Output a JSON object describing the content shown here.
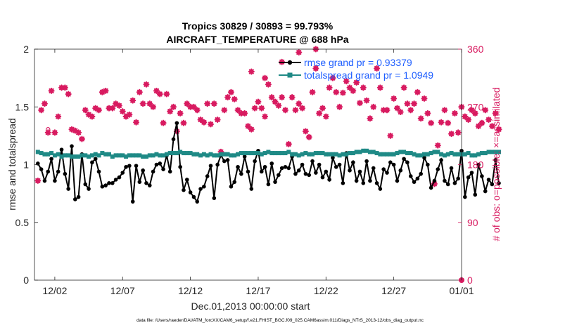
{
  "chart_data": {
    "type": "line",
    "title_line1": "Tropics 30829 / 30893 = 99.793%",
    "title_line2": "AIRCRAFT_TEMPERATURE @ 688 hPa",
    "xlabel": "Dec.01,2013 00:00:00 start",
    "ylabel_left": "rmse and totalspread",
    "ylabel_right": "# of obs: o=possible; ×=assimilated",
    "ylim_left": [
      0,
      2
    ],
    "ylim_right": [
      0,
      360
    ],
    "xlim_days": [
      -0.5,
      31
    ],
    "x_ticks": [
      {
        "day": 1,
        "label": "12/02"
      },
      {
        "day": 6,
        "label": "12/07"
      },
      {
        "day": 11,
        "label": "12/12"
      },
      {
        "day": 16,
        "label": "12/17"
      },
      {
        "day": 21,
        "label": "12/22"
      },
      {
        "day": 26,
        "label": "12/27"
      },
      {
        "day": 31,
        "label": "01/01"
      }
    ],
    "y_ticks_left": [
      {
        "value": 0,
        "label": "0"
      },
      {
        "value": 0.5,
        "label": "0.5"
      },
      {
        "value": 1,
        "label": "1"
      },
      {
        "value": 1.5,
        "label": "1.5"
      },
      {
        "value": 2,
        "label": "2"
      }
    ],
    "y_ticks_right": [
      {
        "value": 0,
        "label": "0"
      },
      {
        "value": 90,
        "label": "90"
      },
      {
        "value": 180,
        "label": "180"
      },
      {
        "value": 270,
        "label": "270"
      },
      {
        "value": 360,
        "label": "360"
      }
    ],
    "x_start_day": -0.25,
    "x_step_days": 0.25,
    "series": [
      {
        "name": "rmse grand pr = 0.93379",
        "axis": "left",
        "color": "#000000",
        "marker": "filled-circle",
        "values": [
          1.01,
          0.96,
          0.86,
          0.94,
          1.05,
          0.86,
          0.94,
          1.13,
          0.92,
          0.79,
          1.16,
          0.7,
          0.72,
          1.09,
          0.83,
          0.79,
          1.02,
          1.05,
          0.94,
          0.81,
          0.82,
          0.84,
          0.84,
          0.87,
          0.89,
          0.93,
          0.98,
          0.99,
          0.68,
          0.99,
          0.85,
          0.95,
          0.84,
          0.82,
          0.94,
          1.0,
          1.01,
          0.96,
          1.08,
          0.94,
          1.22,
          1.36,
          0.98,
          0.78,
          0.87,
          0.76,
          0.72,
          0.68,
          0.79,
          0.81,
          0.9,
          0.99,
          0.71,
          1.0,
          1.08,
          1.03,
          1.04,
          0.81,
          0.85,
          0.98,
          0.92,
          1.07,
          0.94,
          0.79,
          1.03,
          1.12,
          0.94,
          0.98,
          0.83,
          1.01,
          0.85,
          0.91,
          0.97,
          0.98,
          0.97,
          1.07,
          0.92,
          0.95,
          1.0,
          0.92,
          0.91,
          1.03,
          0.93,
          1.0,
          0.89,
          0.94,
          0.87,
          1.06,
          0.98,
          1.0,
          0.84,
          1.1,
          0.95,
          1.02,
          0.86,
          0.94,
          0.84,
          1.03,
          0.86,
          0.97,
          0.84,
          0.79,
          0.96,
          0.93,
          1.02,
          1.0,
          0.86,
          0.95,
          1.05,
          1.02,
          0.9,
          0.85,
          0.88,
          0.92,
          1.06,
          1.0,
          0.8,
          0.86,
          0.96,
          1.04,
          0.86,
          0.83,
          0.97,
          0.84,
          0.88,
          1.12,
          0.72,
          0.89,
          0.93,
          0.74,
          1.0,
          0.9,
          0.77,
          0.87,
          0.83,
          1.04,
          0.84
        ]
      },
      {
        "name": "totalspread grand pr = 1.0949",
        "axis": "left",
        "color": "#1f8a86",
        "marker": "filled-square",
        "values": [
          1.11,
          1.1,
          1.09,
          1.09,
          1.1,
          1.08,
          1.09,
          1.07,
          1.08,
          1.08,
          1.07,
          1.07,
          1.07,
          1.08,
          1.08,
          1.07,
          1.08,
          1.09,
          1.08,
          1.1,
          1.09,
          1.09,
          1.07,
          1.08,
          1.08,
          1.08,
          1.07,
          1.08,
          1.08,
          1.08,
          1.08,
          1.07,
          1.07,
          1.08,
          1.08,
          1.09,
          1.08,
          1.08,
          1.09,
          1.1,
          1.1,
          1.1,
          1.11,
          1.1,
          1.1,
          1.1,
          1.09,
          1.09,
          1.08,
          1.09,
          1.08,
          1.09,
          1.08,
          1.08,
          1.09,
          1.09,
          1.09,
          1.08,
          1.08,
          1.09,
          1.1,
          1.1,
          1.1,
          1.1,
          1.1,
          1.1,
          1.09,
          1.1,
          1.11,
          1.1,
          1.1,
          1.1,
          1.1,
          1.1,
          1.11,
          1.09,
          1.09,
          1.08,
          1.09,
          1.1,
          1.09,
          1.09,
          1.1,
          1.1,
          1.1,
          1.09,
          1.09,
          1.09,
          1.09,
          1.08,
          1.09,
          1.09,
          1.1,
          1.1,
          1.11,
          1.11,
          1.12,
          1.12,
          1.11,
          1.11,
          1.1,
          1.09,
          1.09,
          1.09,
          1.09,
          1.09,
          1.1,
          1.11,
          1.11,
          1.1,
          1.1,
          1.09,
          1.08,
          1.08,
          1.09,
          1.09,
          1.1,
          1.11,
          1.11,
          1.09,
          1.08,
          1.09,
          1.1,
          1.09,
          1.09,
          1.09,
          1.09,
          1.1,
          1.08,
          1.08,
          1.09,
          1.1,
          1.1,
          1.11,
          1.11,
          1.11,
          1.11
        ]
      }
    ],
    "obs_counts": {
      "axis": "right",
      "color": "#d81b60",
      "possible": [
        155,
        265,
        275,
        235,
        295,
        230,
        255,
        300,
        300,
        290,
        235,
        233,
        230,
        220,
        265,
        258,
        255,
        268,
        265,
        293,
        295,
        268,
        268,
        275,
        272,
        263,
        255,
        258,
        280,
        246,
        293,
        275,
        305,
        275,
        270,
        295,
        290,
        245,
        290,
        263,
        270,
        232,
        260,
        245,
        275,
        270,
        270,
        265,
        250,
        246,
        275,
        243,
        275,
        250,
        200,
        265,
        285,
        293,
        282,
        265,
        260,
        260,
        240,
        235,
        268,
        278,
        268,
        255,
        305,
        285,
        278,
        272,
        285,
        265,
        212,
        285,
        265,
        275,
        268,
        232,
        223,
        293,
        330,
        260,
        268,
        255,
        300,
        315,
        293,
        270,
        292,
        310,
        300,
        295,
        308,
        276,
        300,
        280,
        252,
        270,
        330,
        300,
        265,
        265,
        225,
        283,
        268,
        262,
        300,
        275,
        265,
        275,
        293,
        252,
        283,
        260,
        245,
        150,
        210,
        246,
        265,
        245,
        228,
        260,
        230,
        270,
        255,
        250,
        265,
        260,
        240,
        245,
        265,
        250,
        240,
        260,
        235
      ],
      "assimilated": [
        155,
        265,
        275,
        230,
        295,
        230,
        255,
        300,
        300,
        290,
        235,
        233,
        230,
        220,
        265,
        258,
        255,
        268,
        265,
        293,
        295,
        268,
        268,
        275,
        272,
        263,
        255,
        258,
        280,
        246,
        293,
        275,
        305,
        275,
        270,
        295,
        290,
        245,
        290,
        263,
        270,
        232,
        260,
        245,
        275,
        270,
        270,
        265,
        250,
        246,
        275,
        243,
        275,
        250,
        200,
        265,
        285,
        293,
        282,
        265,
        260,
        260,
        240,
        235,
        268,
        278,
        268,
        255,
        305,
        285,
        278,
        272,
        285,
        265,
        212,
        285,
        265,
        275,
        268,
        232,
        223,
        293,
        330,
        260,
        268,
        255,
        300,
        315,
        293,
        270,
        292,
        310,
        300,
        295,
        308,
        276,
        300,
        280,
        252,
        270,
        330,
        300,
        265,
        265,
        225,
        283,
        268,
        262,
        300,
        275,
        265,
        275,
        293,
        252,
        283,
        260,
        245,
        150,
        210,
        246,
        265,
        245,
        228,
        260,
        230,
        270,
        255,
        250,
        265,
        260,
        240,
        245,
        265,
        250,
        240,
        260,
        235
      ],
      "extra_high_points": [
        [
          17.75,
          340
        ],
        [
          19.0,
          355
        ],
        [
          20.25,
          360
        ],
        [
          15.5,
          325
        ],
        [
          16.5,
          315
        ]
      ],
      "zero_marker_day": 31
    },
    "footnote": "data file: /Users/raeder/DAI/ATM_forcXX/CAM6_setup/f.e21.FHIST_BGC.f09_025.CAM6assim.011/Diags_NTrS_2013-12/obs_diag_output.nc"
  }
}
